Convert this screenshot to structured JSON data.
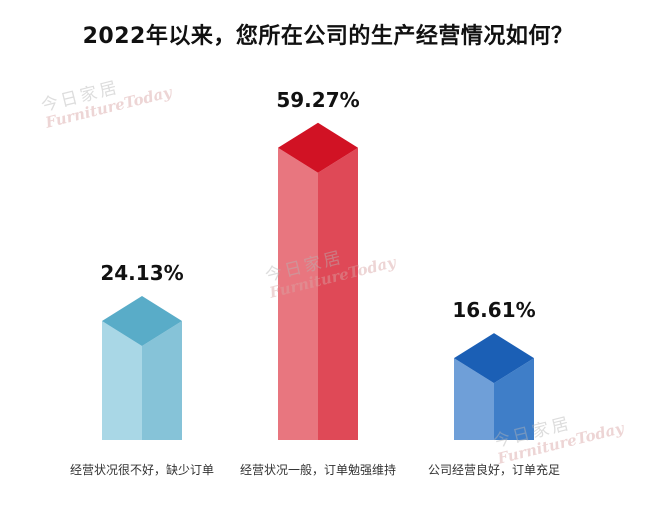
{
  "chart_data": {
    "type": "bar",
    "title": "2022年以来，您所在公司的生产经营情况如何？",
    "categories": [
      "经营状况很不好，缺少订单",
      "经营状况一般，订单勉强维持",
      "公司经营良好，订单充足"
    ],
    "values": [
      24.13,
      59.27,
      16.61
    ],
    "data_labels": [
      "24.13%",
      "59.27%",
      "16.61%"
    ],
    "colors": {
      "front": [
        "#a9d7e6",
        "#e8767f",
        "#6f9fd8"
      ],
      "side": [
        "#86c3d8",
        "#df4957",
        "#3f7ec8"
      ],
      "top": [
        "#59acc8",
        "#d11224",
        "#1b5fb5"
      ]
    },
    "ylim": [
      0,
      100
    ],
    "grid": false,
    "legend": "none"
  },
  "watermark": {
    "cn": "今日家居",
    "en": "FurnitureToday"
  }
}
